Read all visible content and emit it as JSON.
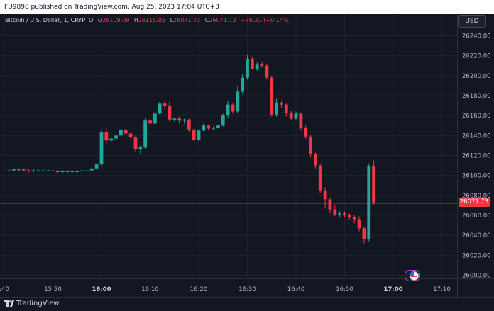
{
  "topbar": {
    "text": "FU9898 published on TradingView.com, Aug 25, 2023 17:04 UTC+3"
  },
  "legend": {
    "symbol": "Bitcoin / U.S. Dollar, 1, CRYPTO",
    "o_label": "O",
    "o_value": "26109.09",
    "h_label": "H",
    "h_value": "26115.05",
    "l_label": "L",
    "l_value": "26071.73",
    "c_label": "C",
    "c_value": "26071.73",
    "change": "−36.21 (−0.14%)"
  },
  "currency_button": "USD",
  "last_price_label": "26071.73",
  "bottombar": {
    "brand": "TradingView"
  },
  "colors": {
    "up": "#26a69a",
    "down": "#f23645",
    "grid": "#1e222d",
    "axis_text": "#b2b5be",
    "background": "#131722"
  },
  "chart_data": {
    "type": "candlestick",
    "ylim": [
      25990,
      26250
    ],
    "y_ticks": [
      26000,
      26020,
      26040,
      26060,
      26080,
      26100,
      26120,
      26140,
      26160,
      26180,
      26200,
      26220,
      26240
    ],
    "y_tick_labels": [
      "26000.00",
      "26020.00",
      "26040.00",
      "26060.00",
      "26080.00",
      "26100.00",
      "26120.00",
      "26140.00",
      "26160.00",
      "26180.00",
      "26200.00",
      "26220.00",
      "26240.00"
    ],
    "x_tick_labels": [
      {
        "minute": -1,
        "label": ":40",
        "bold": false
      },
      {
        "minute": 9,
        "label": "15:50",
        "bold": false
      },
      {
        "minute": 19,
        "label": "16:00",
        "bold": true
      },
      {
        "minute": 29,
        "label": "16:10",
        "bold": false
      },
      {
        "minute": 39,
        "label": "16:20",
        "bold": false
      },
      {
        "minute": 49,
        "label": "16:30",
        "bold": false
      },
      {
        "minute": 59,
        "label": "16:40",
        "bold": false
      },
      {
        "minute": 69,
        "label": "16:50",
        "bold": false
      },
      {
        "minute": 79,
        "label": "17:00",
        "bold": true
      },
      {
        "minute": 89,
        "label": "17:10",
        "bold": false
      }
    ],
    "last_price": 26071.73,
    "candles": [
      [
        26105,
        26106,
        26104,
        26105
      ],
      [
        26105,
        26107,
        26104,
        26106
      ],
      [
        26106,
        26107,
        26105,
        26106
      ],
      [
        26106,
        26107,
        26104,
        26105
      ],
      [
        26105,
        26106,
        26103,
        26104
      ],
      [
        26104,
        26106,
        26103,
        26105
      ],
      [
        26105,
        26106,
        26104,
        26105
      ],
      [
        26105,
        26106,
        26104,
        26105
      ],
      [
        26105,
        26106,
        26104,
        26105
      ],
      [
        26105,
        26106,
        26104,
        26104
      ],
      [
        26104,
        26105,
        26103,
        26104
      ],
      [
        26104,
        26105,
        26103,
        26104
      ],
      [
        26104,
        26105,
        26103,
        26104
      ],
      [
        26104,
        26105,
        26103,
        26104
      ],
      [
        26104,
        26105,
        26103,
        26104
      ],
      [
        26104,
        26106,
        26103,
        26105
      ],
      [
        26105,
        26106,
        26104,
        26105
      ],
      [
        26105,
        26108,
        26104,
        26107
      ],
      [
        26107,
        26112,
        26106,
        26111
      ],
      [
        26111,
        26146,
        26110,
        26143
      ],
      [
        26143,
        26148,
        26132,
        26135
      ],
      [
        26135,
        26138,
        26133,
        26137
      ],
      [
        26137,
        26142,
        26136,
        26140
      ],
      [
        26140,
        26147,
        26139,
        26146
      ],
      [
        26146,
        26148,
        26141,
        26142
      ],
      [
        26142,
        26143,
        26136,
        26138
      ],
      [
        26138,
        26140,
        26124,
        26126
      ],
      [
        26126,
        26130,
        26122,
        26128
      ],
      [
        26128,
        26158,
        26127,
        26155
      ],
      [
        26155,
        26159,
        26150,
        26152
      ],
      [
        26152,
        26164,
        26150,
        26162
      ],
      [
        26162,
        26174,
        26160,
        26172
      ],
      [
        26172,
        26175,
        26166,
        26170
      ],
      [
        26170,
        26174,
        26154,
        26156
      ],
      [
        26156,
        26158,
        26154,
        26157
      ],
      [
        26157,
        26159,
        26153,
        26155
      ],
      [
        26155,
        26157,
        26152,
        26156
      ],
      [
        26156,
        26157,
        26144,
        26146
      ],
      [
        26146,
        26148,
        26134,
        26136
      ],
      [
        26136,
        26146,
        26134,
        26145
      ],
      [
        26145,
        26152,
        26144,
        26150
      ],
      [
        26150,
        26151,
        26145,
        26147
      ],
      [
        26147,
        26149,
        26146,
        26148
      ],
      [
        26148,
        26151,
        26147,
        26150
      ],
      [
        26150,
        26162,
        26149,
        26160
      ],
      [
        26160,
        26175,
        26158,
        26171
      ],
      [
        26171,
        26173,
        26162,
        26164
      ],
      [
        26164,
        26190,
        26162,
        26184
      ],
      [
        26184,
        26202,
        26182,
        26198
      ],
      [
        26198,
        26221,
        26196,
        26217
      ],
      [
        26217,
        26219,
        26206,
        26207
      ],
      [
        26207,
        26214,
        26205,
        26211
      ],
      [
        26211,
        26214,
        26208,
        26210
      ],
      [
        26210,
        26212,
        26196,
        26198
      ],
      [
        26198,
        26200,
        26159,
        26161
      ],
      [
        26161,
        26177,
        26159,
        26173
      ],
      [
        26173,
        26175,
        26168,
        26171
      ],
      [
        26171,
        26172,
        26159,
        26163
      ],
      [
        26163,
        26165,
        26155,
        26157
      ],
      [
        26157,
        26164,
        26155,
        26162
      ],
      [
        26162,
        26163,
        26145,
        26148
      ],
      [
        26148,
        26150,
        26137,
        26139
      ],
      [
        26139,
        26141,
        26118,
        26121
      ],
      [
        26121,
        26123,
        26107,
        26110
      ],
      [
        26110,
        26112,
        26082,
        26085
      ],
      [
        26085,
        26088,
        26067,
        26076
      ],
      [
        26076,
        26078,
        26062,
        26066
      ],
      [
        26066,
        26070,
        26059,
        26061
      ],
      [
        26061,
        26064,
        26058,
        26062
      ],
      [
        26062,
        26064,
        26058,
        26060
      ],
      [
        26060,
        26062,
        26056,
        26058
      ],
      [
        26058,
        26060,
        26052,
        26056
      ],
      [
        26056,
        26059,
        26044,
        26047
      ],
      [
        26047,
        26049,
        26032,
        26036
      ],
      [
        26036,
        26112,
        26034,
        26109
      ],
      [
        26109,
        26115,
        26071,
        26072
      ]
    ]
  }
}
